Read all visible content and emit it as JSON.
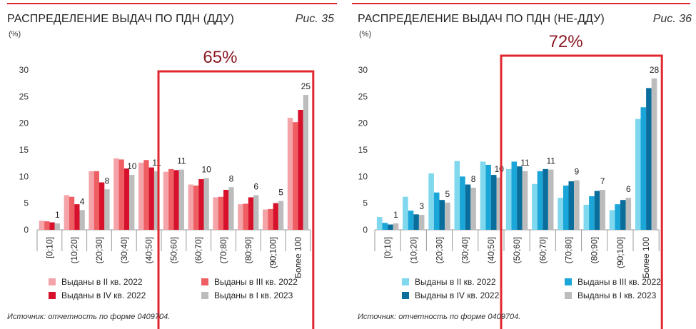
{
  "chart_data": [
    {
      "type": "bar",
      "title": "РАСПРЕДЕЛЕНИЕ ВЫДАЧ ПО ПДН (ДДУ)",
      "figure": "Рис. 35",
      "ylabel": "(%)",
      "ylim": [
        0,
        30
      ],
      "yticks": [
        0,
        5,
        10,
        15,
        20,
        25,
        30
      ],
      "grid": false,
      "legend_position": "bottom",
      "categories": [
        "[0;10]",
        "(10;20]",
        "(20;30]",
        "(30;40]",
        "(40;50]",
        "(50;60]",
        "(60;70]",
        "(70;80]",
        "(80;90]",
        "(90;100]",
        "Более 100"
      ],
      "series": [
        {
          "name": "Выданы в II кв. 2022",
          "color": "#F4A3A8",
          "values": [
            1.7,
            6.5,
            11.0,
            13.4,
            12.6,
            10.9,
            8.5,
            6.1,
            4.8,
            3.8,
            21.0
          ]
        },
        {
          "name": "Выданы в III кв. 2022",
          "color": "#EE5E63",
          "values": [
            1.6,
            6.2,
            11.0,
            13.2,
            13.1,
            11.4,
            8.3,
            6.2,
            4.9,
            3.9,
            20.2
          ]
        },
        {
          "name": "Выданы в IV кв. 2022",
          "color": "#D7102B",
          "values": [
            1.4,
            4.8,
            8.9,
            11.5,
            11.7,
            11.2,
            9.5,
            7.5,
            6.1,
            5.0,
            22.5
          ]
        },
        {
          "name": "Выданы в I кв. 2023",
          "color": "#BCBCBC",
          "values": [
            1.2,
            3.7,
            7.6,
            10.3,
            11.0,
            11.3,
            9.7,
            8.0,
            6.5,
            5.4,
            25.3
          ]
        }
      ],
      "data_labels": [
        "1",
        "4",
        "8",
        "10",
        "11",
        "11",
        "10",
        "8",
        "6",
        "5",
        "25"
      ],
      "highlight": {
        "label": "65%",
        "from_category": 5,
        "to_category": 10,
        "color": "#E0272F"
      },
      "source": "Источник: отчетность по форме 0409704."
    },
    {
      "type": "bar",
      "title": "РАСПРЕДЕЛЕНИЕ ВЫДАЧ ПО ПДН (НЕ-ДДУ)",
      "figure": "Рис. 36",
      "ylabel": "(%)",
      "ylim": [
        0,
        30
      ],
      "yticks": [
        0,
        5,
        10,
        15,
        20,
        25,
        30
      ],
      "grid": false,
      "legend_position": "bottom",
      "categories": [
        "[0;10]",
        "(10;20]",
        "(20;30]",
        "(30;40]",
        "(40;50]",
        "(50;60]",
        "(60;70]",
        "(70;80]",
        "(80;90]",
        "(90;100]",
        "Более 100"
      ],
      "series": [
        {
          "name": "Выданы в II кв. 2022",
          "color": "#7FD8EE",
          "values": [
            2.4,
            6.2,
            10.6,
            12.9,
            12.8,
            11.4,
            8.6,
            6.0,
            4.7,
            3.7,
            20.8
          ]
        },
        {
          "name": "Выданы в III кв. 2022",
          "color": "#1AA6D8",
          "values": [
            1.3,
            3.6,
            7.0,
            10.0,
            12.2,
            12.8,
            11.0,
            8.3,
            6.3,
            4.8,
            23.0
          ]
        },
        {
          "name": "Выданы в IV кв. 2022",
          "color": "#0A6E9C",
          "values": [
            1.0,
            2.9,
            5.6,
            8.5,
            10.3,
            11.9,
            11.4,
            9.1,
            7.3,
            5.6,
            26.6
          ]
        },
        {
          "name": "Выданы в I кв. 2023",
          "color": "#BCBCBC",
          "values": [
            1.2,
            2.8,
            5.1,
            7.9,
            9.8,
            11.0,
            11.3,
            9.3,
            7.5,
            6.0,
            28.4
          ]
        }
      ],
      "data_labels": [
        "1",
        "3",
        "5",
        "8",
        "10",
        "11",
        "11",
        "9",
        "7",
        "6",
        "28"
      ],
      "highlight": {
        "label": "72%",
        "from_category": 5,
        "to_category": 10,
        "color": "#E0272F"
      },
      "source": "Источник: отчетность по форме 0409704."
    }
  ],
  "colors": {
    "accent_line": "#E0272F",
    "axis": "#9A9A9A",
    "highlight_text": "#8B1A24"
  }
}
